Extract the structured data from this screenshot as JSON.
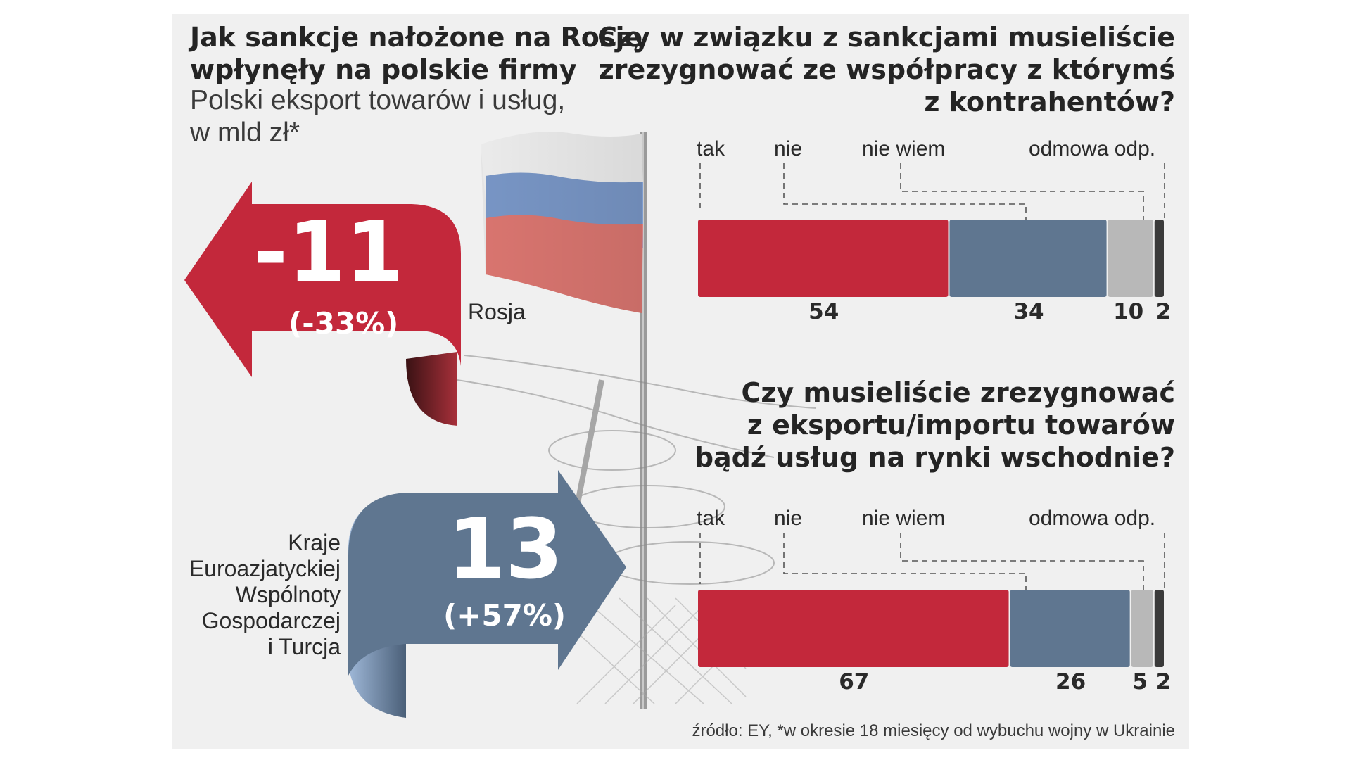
{
  "left": {
    "title_lines": [
      "Jak sankcje nałożone na Rosję",
      "wpłynęły na polskie firmy"
    ],
    "subtitle_lines": [
      "Polski eksport towarów i usług,",
      "w mld zł*"
    ],
    "russia": {
      "label": "Rosja",
      "value": "-11",
      "pct": "(-33%)",
      "color": "#c3283b"
    },
    "eaeu": {
      "label_lines": [
        "Kraje",
        "Euroazjatyckiej",
        "Wspólnoty",
        "Gospodarczej",
        "i Turcja"
      ],
      "value": "13",
      "pct": "(+57%)",
      "color": "#5f7690"
    }
  },
  "chart_data": [
    {
      "type": "bar",
      "orientation": "horizontal-stacked",
      "title_lines": [
        "Czy w związku z sankcjami musieliście",
        "zrezygnować ze współpracy z którymś",
        "z kontrahentów?"
      ],
      "categories": [
        "tak",
        "nie",
        "nie wiem",
        "odmowa odp."
      ],
      "values": [
        54,
        34,
        10,
        2
      ],
      "colors": [
        "#c3283b",
        "#5f7690",
        "#b8b8b8",
        "#3a3a3a"
      ]
    },
    {
      "type": "bar",
      "orientation": "horizontal-stacked",
      "title_lines": [
        "Czy  musieliście zrezygnować",
        "z eksportu/importu towarów",
        "bądź usług na rynki wschodnie?"
      ],
      "categories": [
        "tak",
        "nie",
        "nie wiem",
        "odmowa odp."
      ],
      "values": [
        67,
        26,
        5,
        2
      ],
      "colors": [
        "#c3283b",
        "#5f7690",
        "#b8b8b8",
        "#3a3a3a"
      ]
    }
  ],
  "source": "źródło: EY, *w okresie 18 miesięcy od wybuchu wojny w Ukrainie"
}
